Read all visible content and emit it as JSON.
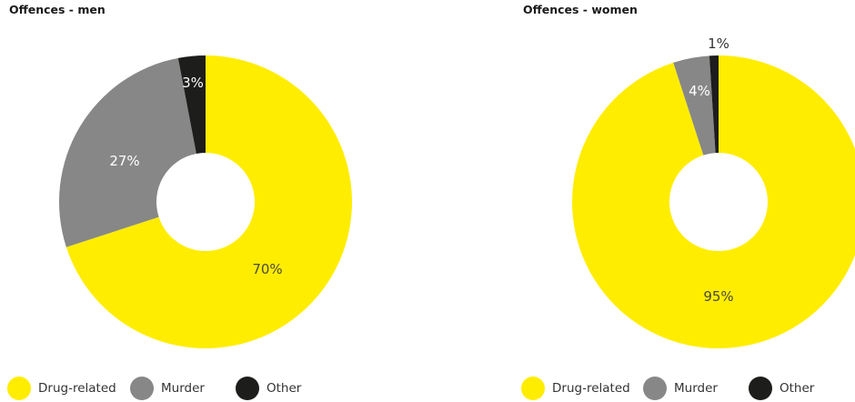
{
  "colors": {
    "drug": "#ffed00",
    "murder": "#878787",
    "other": "#1d1d1b",
    "hole": "#ffffff"
  },
  "chart_data": [
    {
      "type": "pie",
      "title": "Offences - men",
      "categories": [
        "Drug-related",
        "Murder",
        "Other"
      ],
      "values": [
        70,
        27,
        3
      ],
      "labels": [
        "70%",
        "27%",
        "3%"
      ],
      "colors": [
        "#ffed00",
        "#878787",
        "#1d1d1b"
      ],
      "legend_position": "bottom"
    },
    {
      "type": "pie",
      "title": "Offences - women",
      "categories": [
        "Drug-related",
        "Murder",
        "Other"
      ],
      "values": [
        95,
        4,
        1
      ],
      "labels": [
        "95%",
        "4%",
        "1%"
      ],
      "colors": [
        "#ffed00",
        "#878787",
        "#1d1d1b"
      ],
      "legend_position": "bottom"
    }
  ]
}
